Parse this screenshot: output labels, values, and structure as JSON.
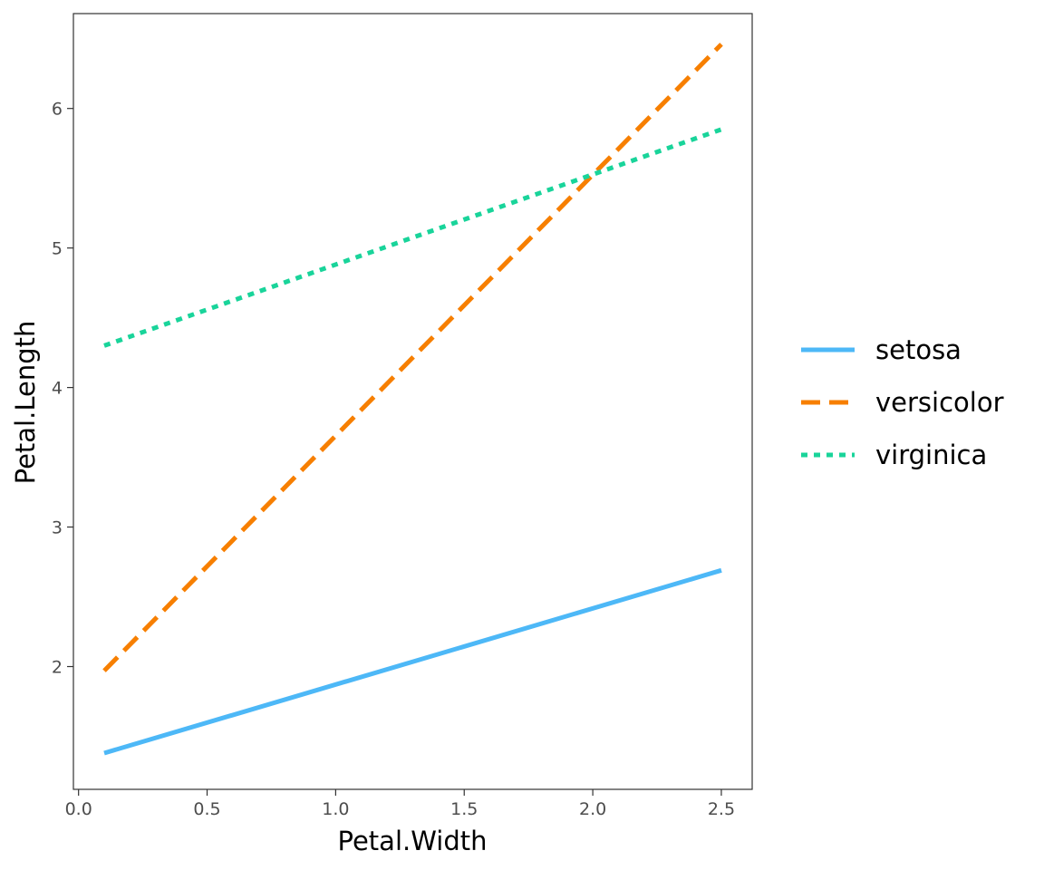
{
  "chart_data": {
    "type": "line",
    "title": "",
    "xlabel": "Petal.Width",
    "ylabel": "Petal.Length",
    "xlim": [
      -0.02,
      2.62
    ],
    "ylim": [
      1.12,
      6.68
    ],
    "x_ticks": [
      0.0,
      0.5,
      1.0,
      1.5,
      2.0,
      2.5
    ],
    "x_tick_labels": [
      "0.0",
      "0.5",
      "1.0",
      "1.5",
      "2.0",
      "2.5"
    ],
    "y_ticks": [
      2,
      3,
      4,
      5,
      6
    ],
    "y_tick_labels": [
      "2",
      "3",
      "4",
      "5",
      "6"
    ],
    "grid": false,
    "legend_position": "right",
    "series": [
      {
        "name": "setosa",
        "x": [
          0.1,
          2.5
        ],
        "values": [
          1.38,
          2.69
        ],
        "color": "#4db8f7",
        "dash": "solid"
      },
      {
        "name": "versicolor",
        "x": [
          0.1,
          2.5
        ],
        "values": [
          1.97,
          6.46
        ],
        "color": "#f77f00",
        "dash": "dashed"
      },
      {
        "name": "virginica",
        "x": [
          0.1,
          2.5
        ],
        "values": [
          4.3,
          5.85
        ],
        "color": "#19d49a",
        "dash": "dotted"
      }
    ]
  }
}
